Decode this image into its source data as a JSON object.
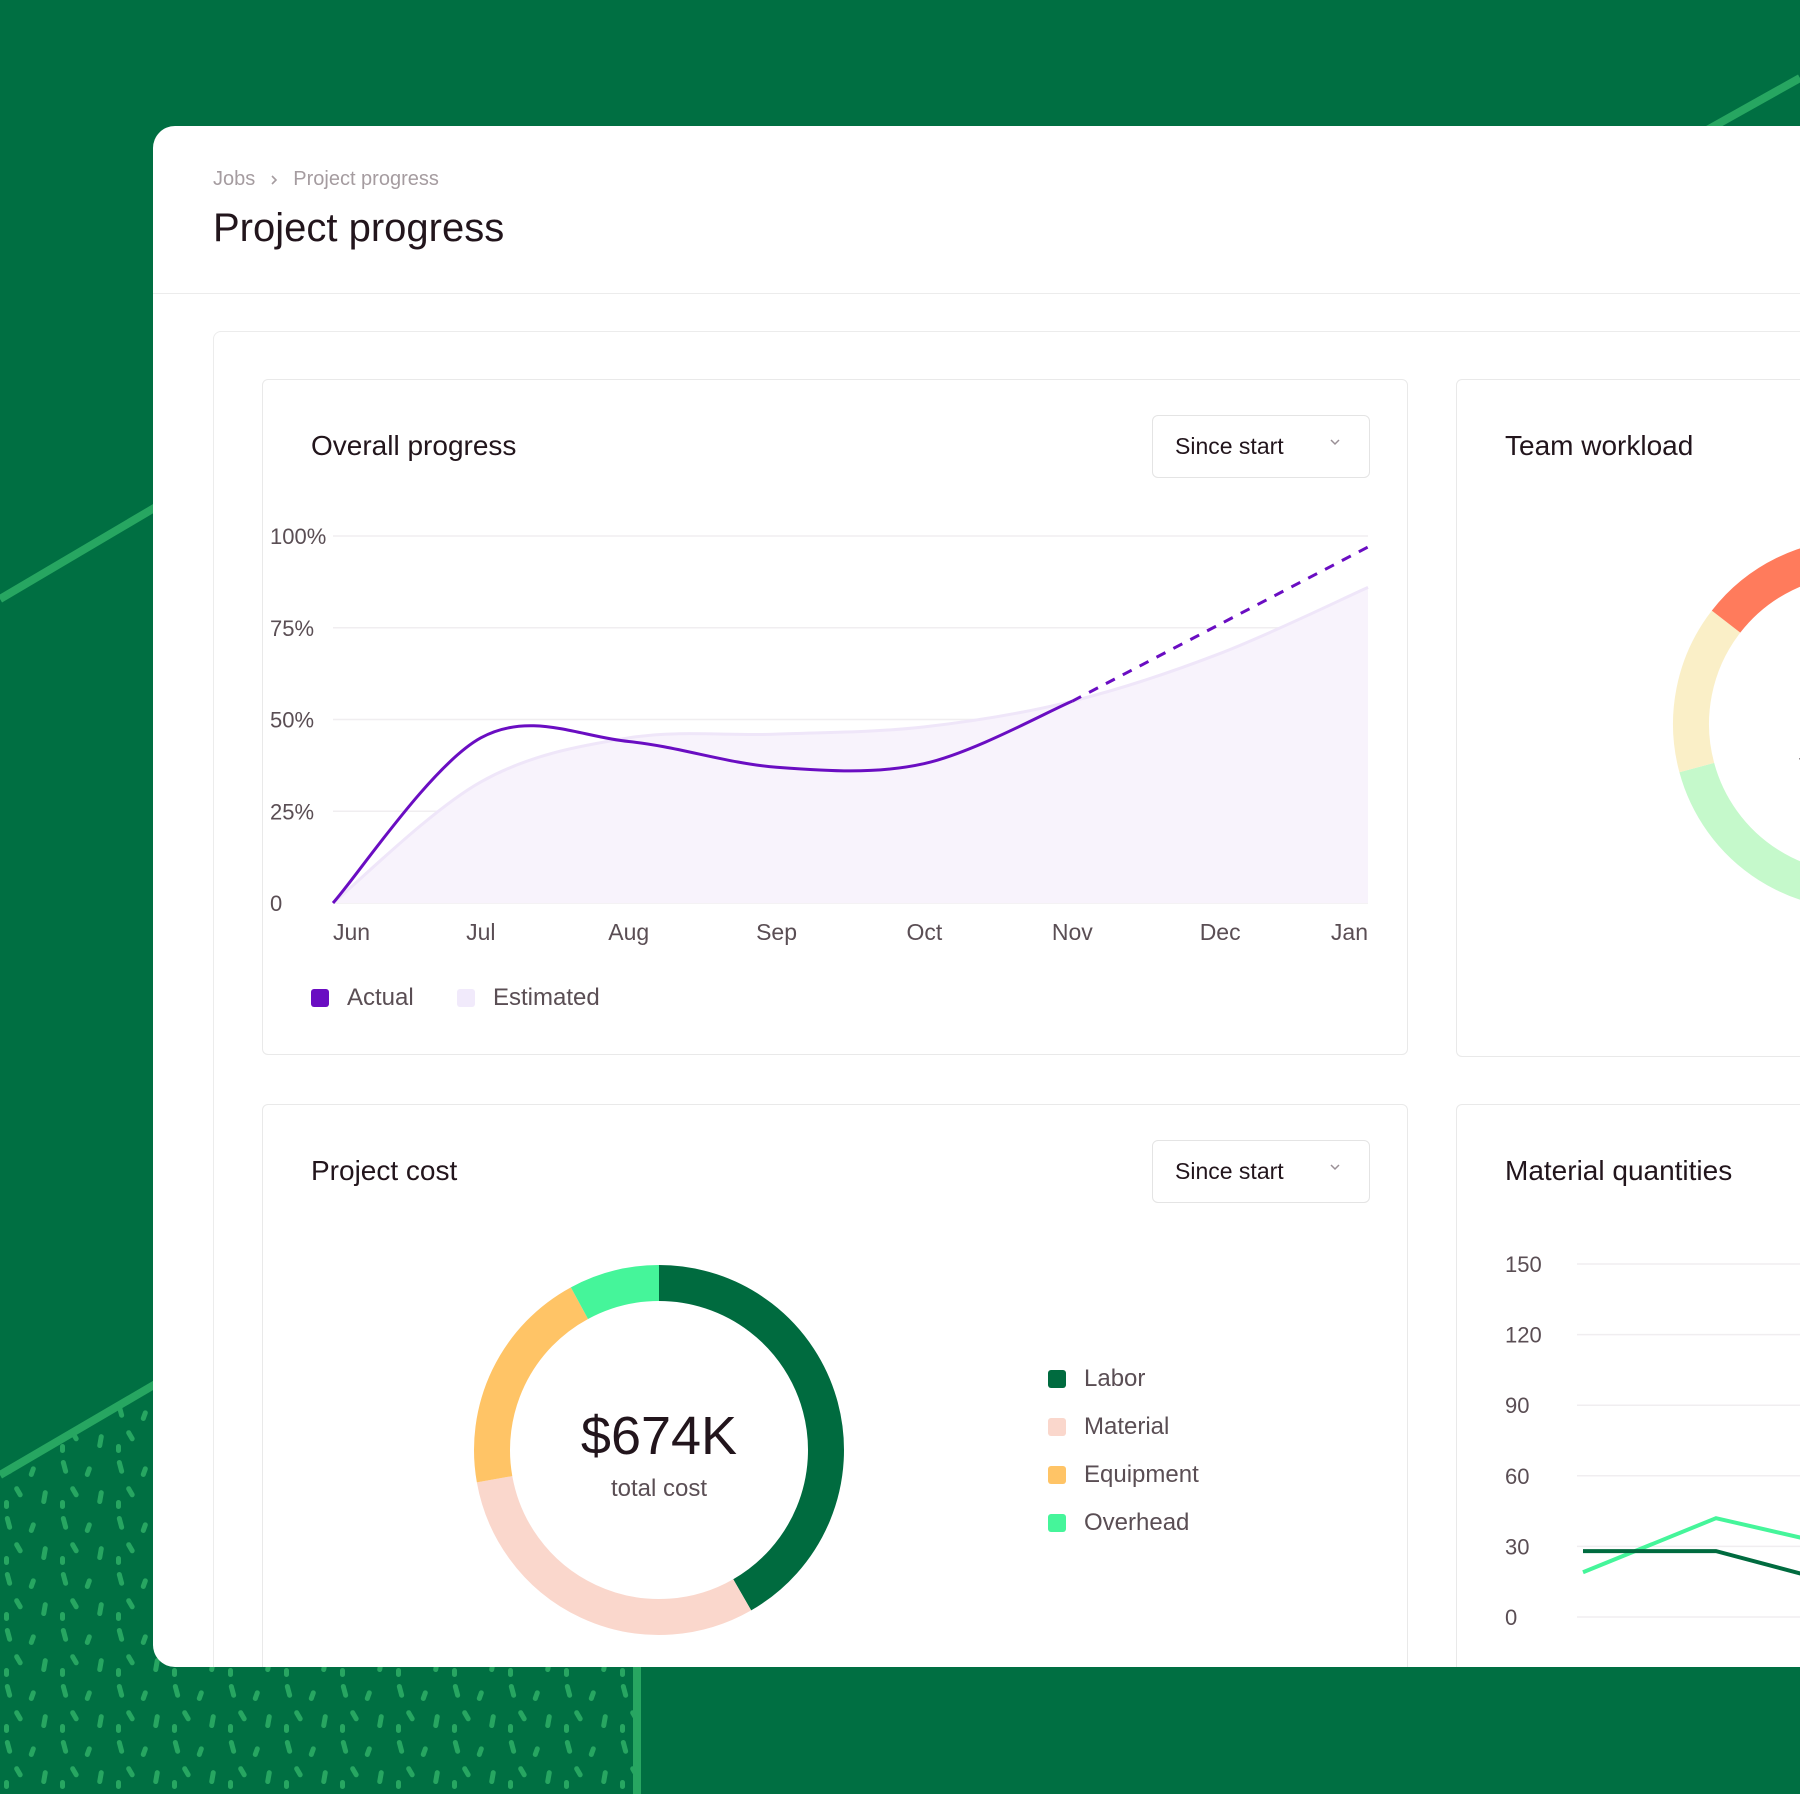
{
  "breadcrumb": {
    "items": [
      "Jobs",
      "Project progress"
    ]
  },
  "page": {
    "title": "Project progress"
  },
  "overall_progress": {
    "title": "Overall progress",
    "range_select": "Since start",
    "legend": [
      {
        "label": "Actual",
        "color": "#6A0DC2"
      },
      {
        "label": "Estimated",
        "color": "#F1EAFB"
      }
    ]
  },
  "team_workload": {
    "title": "Team workload",
    "center_text_partial": "t"
  },
  "project_cost": {
    "title": "Project cost",
    "range_select": "Since start",
    "total": "$674K",
    "total_label": "total cost",
    "legend": [
      {
        "label": "Labor",
        "color": "#006B3F"
      },
      {
        "label": "Material",
        "color": "#FAD7CC"
      },
      {
        "label": "Equipment",
        "color": "#FFC466"
      },
      {
        "label": "Overhead",
        "color": "#45F59A"
      }
    ]
  },
  "material_quantities": {
    "title": "Material quantities"
  },
  "chart_data": [
    {
      "type": "area",
      "title": "Overall progress",
      "categories": [
        "Jun",
        "Jul",
        "Aug",
        "Sep",
        "Oct",
        "Nov",
        "Dec",
        "Jan"
      ],
      "y_ticks": [
        "0",
        "25%",
        "50%",
        "75%",
        "100%"
      ],
      "ylim": [
        0,
        100
      ],
      "grid": true,
      "legend_position": "bottom-left",
      "series": [
        {
          "name": "Actual",
          "style": "line",
          "color": "#6A0DC2",
          "values": [
            0,
            45,
            44,
            37,
            38,
            55,
            null,
            null
          ]
        },
        {
          "name": "Actual",
          "style": "dashed-projection",
          "color": "#6A0DC2",
          "values": [
            null,
            null,
            null,
            null,
            null,
            55,
            76,
            97
          ]
        },
        {
          "name": "Estimated",
          "style": "area",
          "color": "#F1EAFB",
          "values": [
            0,
            33,
            45,
            46,
            48,
            55,
            68,
            86
          ]
        }
      ]
    },
    {
      "type": "pie",
      "title": "Team workload",
      "donut": true,
      "slices": [
        {
          "value": 70.8,
          "color": "#C5F9CB"
        },
        {
          "value": 14.7,
          "color": "#FAEFC7"
        },
        {
          "value": 14.5,
          "color": "#FF7B5C"
        }
      ]
    },
    {
      "type": "pie",
      "title": "Project cost",
      "donut": true,
      "slices": [
        {
          "label": "Labor",
          "value": 41.7,
          "color": "#006B3F"
        },
        {
          "label": "Material",
          "value": 30.5,
          "color": "#FAD7CC"
        },
        {
          "label": "Equipment",
          "value": 19.9,
          "color": "#FFC466"
        },
        {
          "label": "Overhead",
          "value": 7.9,
          "color": "#45F59A"
        }
      ]
    },
    {
      "type": "line",
      "title": "Material quantities",
      "y_ticks": [
        "0",
        "30",
        "60",
        "90",
        "120",
        "150"
      ],
      "ylim": [
        0,
        150
      ],
      "grid": true,
      "series": [
        {
          "color": "#45F59A",
          "values": [
            19,
            42,
            29
          ]
        },
        {
          "color": "#006B3F",
          "values": [
            28,
            28,
            13
          ]
        }
      ]
    }
  ]
}
